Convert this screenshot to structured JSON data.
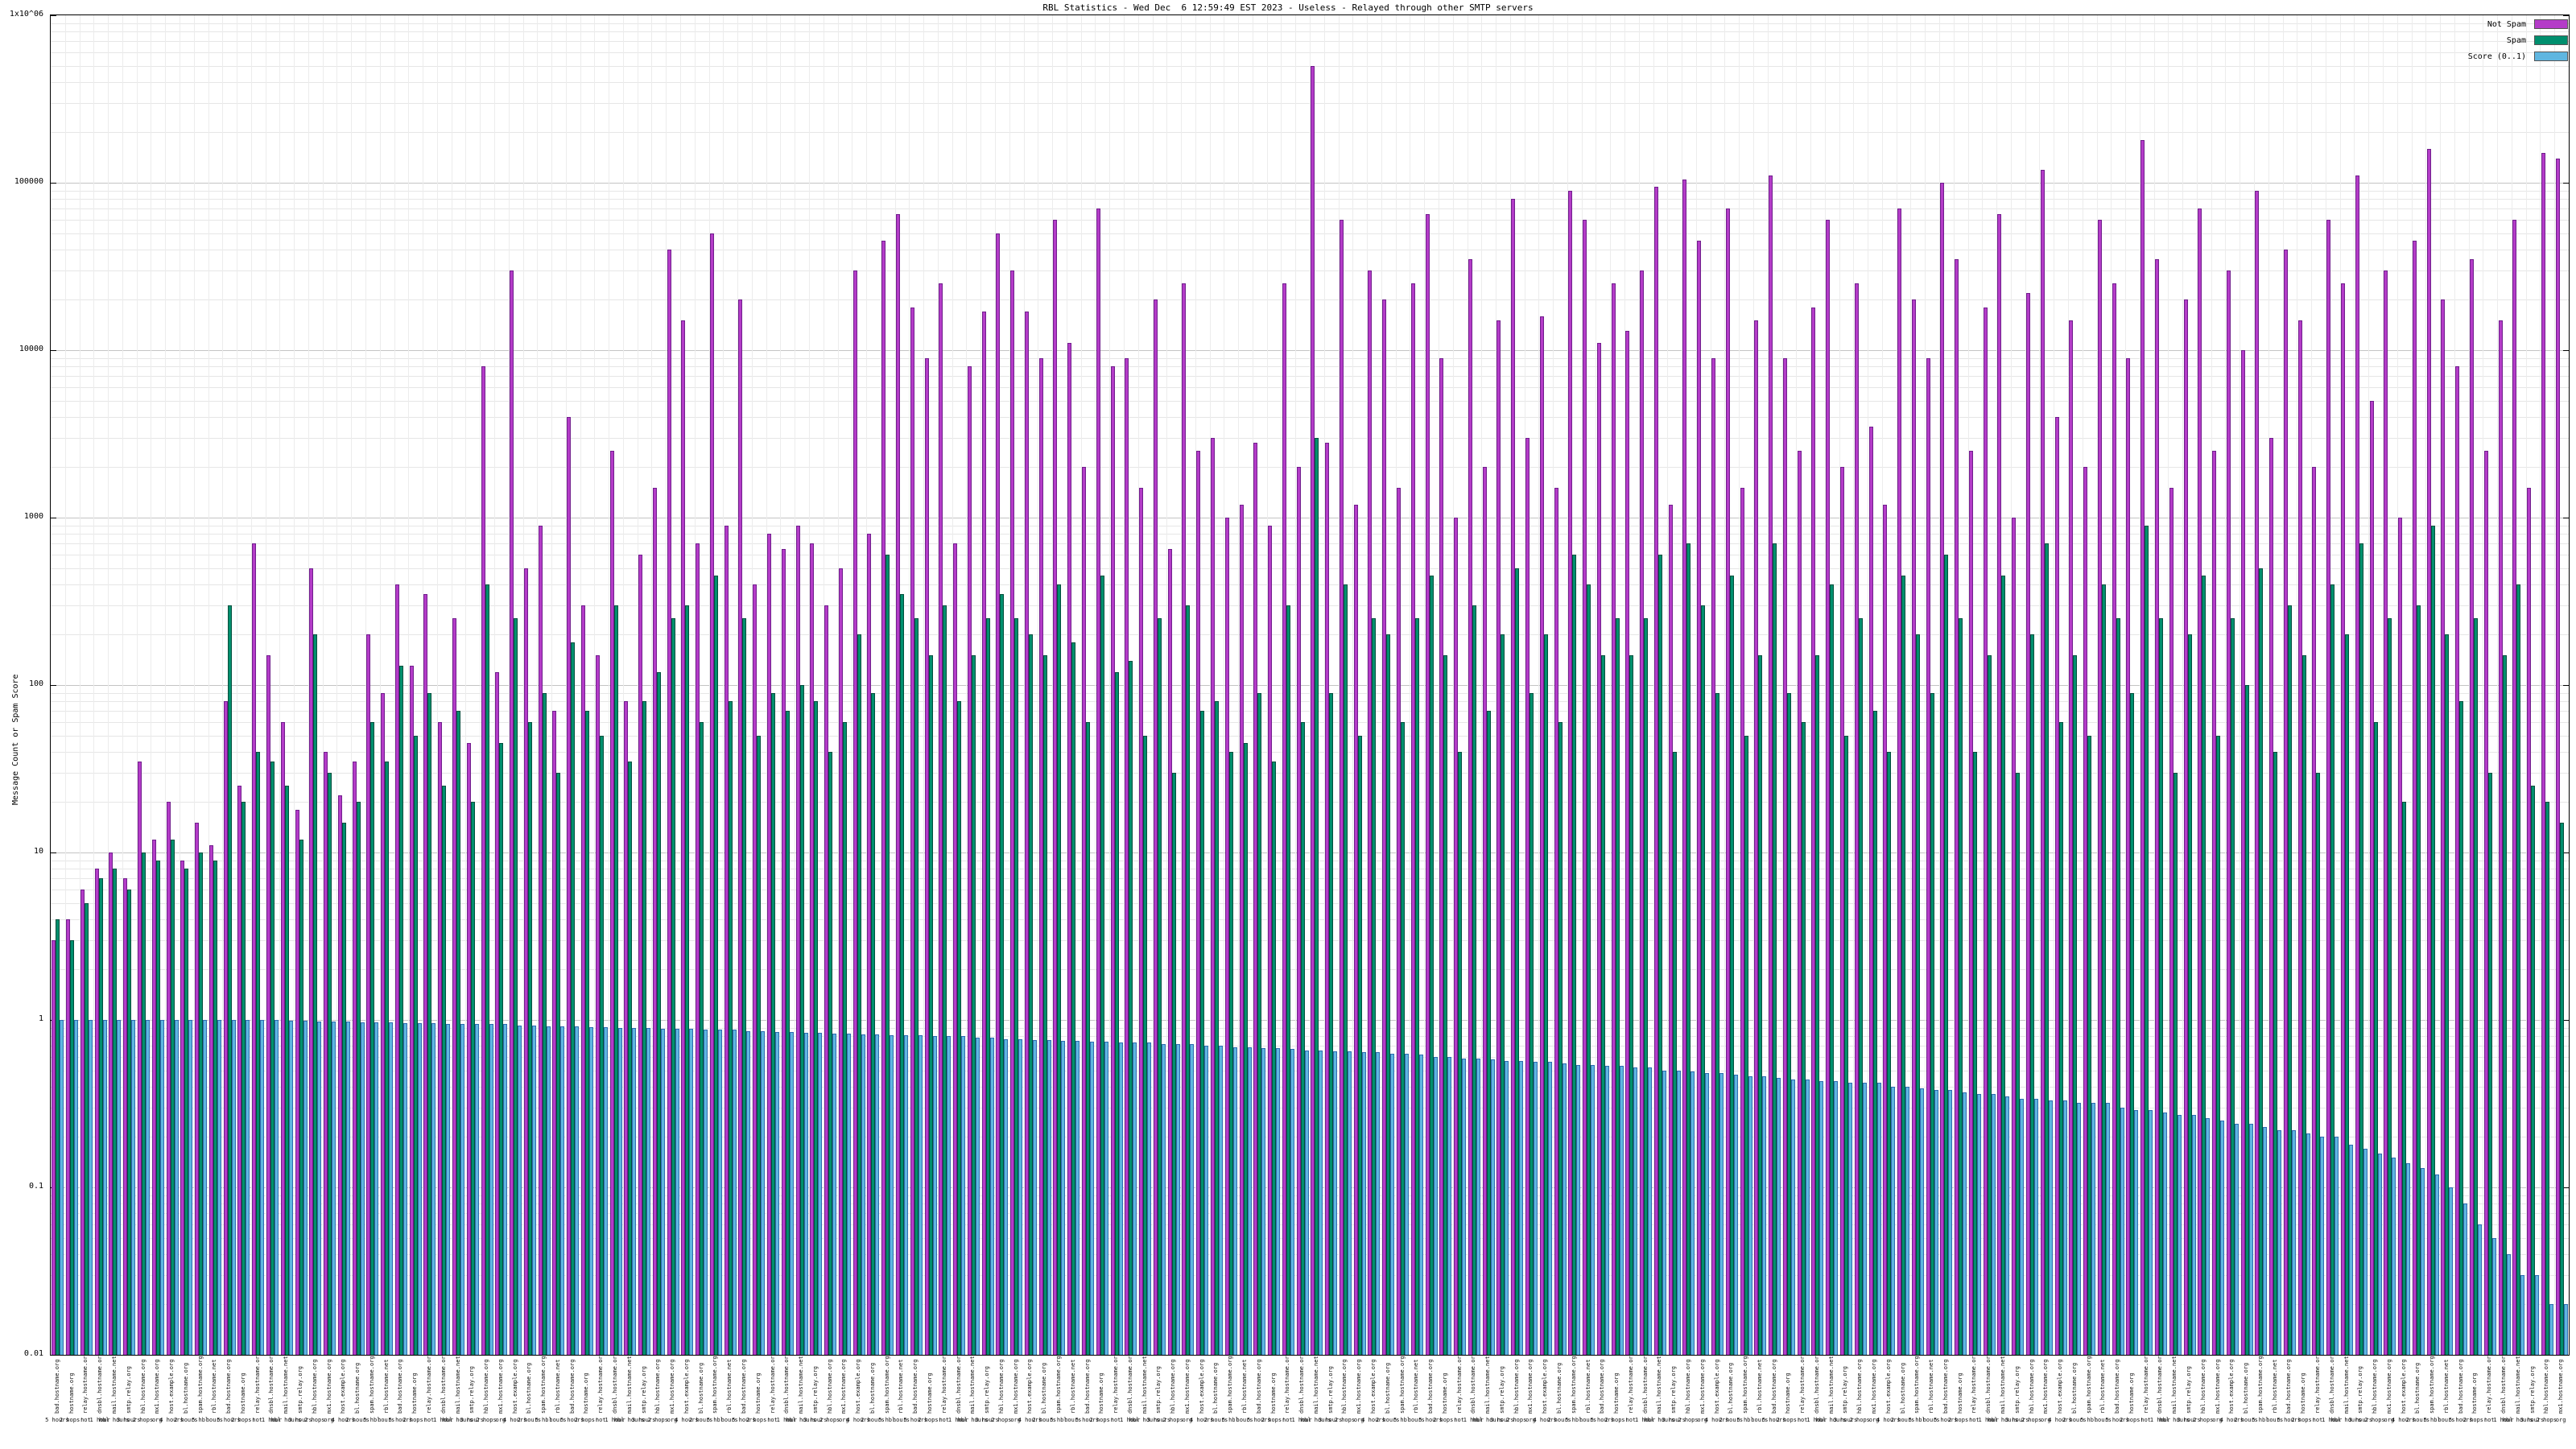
{
  "chart_data": {
    "type": "bar",
    "title": "RBL Statistics - Wed Dec  6 12:59:49 EST 2023 - Useless - Relayed through other SMTP servers",
    "ylabel": "Message Count or Spam Score",
    "xlabel": "",
    "yscale": "log",
    "ylim": [
      0.01,
      1000000
    ],
    "grid": true,
    "legend_position": "top-right",
    "yticks": [
      {
        "v": 1000000,
        "label": "1x10^06"
      },
      {
        "v": 100000,
        "label": "100000"
      },
      {
        "v": 10000,
        "label": "10000"
      },
      {
        "v": 1000,
        "label": "1000"
      },
      {
        "v": 100,
        "label": "100"
      },
      {
        "v": 10,
        "label": "10"
      },
      {
        "v": 1,
        "label": "1"
      },
      {
        "v": 0.1,
        "label": "0.1"
      },
      {
        "v": 0.01,
        "label": "0.01"
      }
    ],
    "legend": [
      {
        "name": "Not Spam",
        "color": "#b43cc8"
      },
      {
        "name": "Spam",
        "color": "#008f6e"
      },
      {
        "name": "Score (0..1)",
        "color": "#5fb6e0"
      }
    ],
    "bar_stroke": {
      "not_spam": "#701e8c",
      "spam": "#004f3c",
      "score": "#2e6bb0"
    },
    "grid_color_major": "#c4c4c4",
    "grid_color_minor": "#e6e6e6",
    "series_names": [
      "not_spam",
      "spam",
      "score"
    ],
    "xtick_label_pool": [
      "bad.hostname.org",
      "hostname.org",
      "relay.hostname.org",
      "dnsbl.hostname.org",
      "mail.hostname.net",
      "smtp.relay.org",
      "hbl.hostname.org",
      "mx1.hostname.org",
      "host.example.org",
      "bl.hostname.org",
      "spam.hostname.org",
      "rbl.hostname.net"
    ],
    "xtick_sub_pool": [
      "5 hours",
      "2 hops!",
      "not",
      "1 hour",
      "hbl hours",
      "3 hours",
      "2 hops",
      "org",
      "4 hours",
      "2 hours",
      "5 hbl",
      "hours"
    ],
    "not_spam": [
      3,
      4,
      6,
      8,
      10,
      7,
      35,
      12,
      20,
      9,
      15,
      11,
      80,
      25,
      700,
      150,
      60,
      18,
      500,
      40,
      22,
      35,
      200,
      90,
      400,
      130,
      350,
      60,
      250,
      45,
      8000,
      120,
      30000,
      500,
      900,
      70,
      4000,
      300,
      150,
      2500,
      80,
      600,
      1500,
      40000,
      15000,
      700,
      50000,
      900,
      20000,
      400,
      800,
      650,
      900,
      700,
      300,
      500,
      30000,
      800,
      45000,
      65000,
      18000,
      9000,
      25000,
      700,
      8000,
      17000,
      50000,
      30000,
      17000,
      9000,
      60000,
      11000,
      2000,
      70000,
      8000,
      9000,
      1500,
      20000,
      650,
      25000,
      2500,
      3000,
      1000,
      1200,
      2800,
      900,
      25000,
      2000,
      500000,
      2800,
      60000,
      1200,
      30000,
      20000,
      1500,
      25000,
      65000,
      9000,
      1000,
      35000,
      2000,
      15000,
      80000,
      3000,
      16000,
      1500,
      90000,
      60000,
      11000,
      25000,
      13000,
      30000,
      95000,
      1200,
      105000,
      45000,
      9000,
      70000,
      1500,
      15000,
      110000,
      9000,
      2500,
      18000,
      60000,
      2000,
      25000,
      3500,
      1200,
      70000,
      20000,
      9000,
      100000,
      35000,
      2500,
      18000,
      65000,
      1000,
      22000,
      120000,
      4000,
      15000,
      2000,
      60000,
      25000,
      9000,
      180000,
      35000,
      1500,
      20000,
      70000,
      2500,
      30000,
      10000,
      90000,
      3000,
      40000,
      15000,
      2000,
      60000,
      25000,
      110000,
      5000,
      30000,
      1000,
      45000,
      160000,
      20000,
      8000,
      35000,
      2500,
      15000,
      60000,
      1500,
      150000,
      140000
    ],
    "spam": [
      4,
      3,
      5,
      7,
      8,
      6,
      10,
      9,
      12,
      8,
      10,
      9,
      300,
      20,
      40,
      35,
      25,
      12,
      200,
      30,
      15,
      20,
      60,
      35,
      130,
      50,
      90,
      25,
      70,
      20,
      400,
      45,
      250,
      60,
      90,
      30,
      180,
      70,
      50,
      300,
      35,
      80,
      120,
      250,
      300,
      60,
      450,
      80,
      250,
      50,
      90,
      70,
      100,
      80,
      40,
      60,
      200,
      90,
      600,
      350,
      250,
      150,
      300,
      80,
      150,
      250,
      350,
      250,
      200,
      150,
      400,
      180,
      60,
      450,
      120,
      140,
      50,
      250,
      30,
      300,
      70,
      80,
      40,
      45,
      90,
      35,
      300,
      60,
      3000,
      90,
      400,
      50,
      250,
      200,
      60,
      250,
      450,
      150,
      40,
      300,
      70,
      200,
      500,
      90,
      200,
      60,
      600,
      400,
      150,
      250,
      150,
      250,
      600,
      40,
      700,
      300,
      90,
      450,
      50,
      150,
      700,
      90,
      60,
      150,
      400,
      50,
      250,
      70,
      40,
      450,
      200,
      90,
      600,
      250,
      40,
      150,
      450,
      30,
      200,
      700,
      60,
      150,
      50,
      400,
      250,
      90,
      900,
      250,
      30,
      200,
      450,
      50,
      250,
      100,
      500,
      40,
      300,
      150,
      30,
      400,
      200,
      700,
      60,
      250,
      20,
      300,
      900,
      200,
      80,
      250,
      30,
      150,
      400,
      25,
      20,
      15
    ],
    "score": [
      1,
      1,
      1,
      1,
      1,
      1,
      1,
      1,
      1,
      1,
      1,
      1,
      1,
      1,
      1,
      1,
      0.99,
      0.99,
      0.98,
      0.98,
      0.98,
      0.97,
      0.97,
      0.97,
      0.96,
      0.96,
      0.96,
      0.95,
      0.95,
      0.95,
      0.95,
      0.95,
      0.93,
      0.93,
      0.92,
      0.92,
      0.92,
      0.91,
      0.91,
      0.9,
      0.9,
      0.9,
      0.89,
      0.89,
      0.89,
      0.88,
      0.88,
      0.88,
      0.86,
      0.86,
      0.85,
      0.85,
      0.84,
      0.84,
      0.83,
      0.83,
      0.82,
      0.82,
      0.81,
      0.81,
      0.81,
      0.8,
      0.8,
      0.8,
      0.78,
      0.78,
      0.77,
      0.77,
      0.76,
      0.76,
      0.75,
      0.75,
      0.74,
      0.74,
      0.73,
      0.73,
      0.73,
      0.72,
      0.72,
      0.72,
      0.7,
      0.7,
      0.69,
      0.69,
      0.68,
      0.68,
      0.67,
      0.66,
      0.66,
      0.65,
      0.65,
      0.64,
      0.64,
      0.63,
      0.63,
      0.62,
      0.6,
      0.6,
      0.59,
      0.59,
      0.58,
      0.57,
      0.57,
      0.56,
      0.56,
      0.55,
      0.54,
      0.54,
      0.53,
      0.53,
      0.52,
      0.52,
      0.5,
      0.5,
      0.49,
      0.48,
      0.48,
      0.47,
      0.46,
      0.46,
      0.45,
      0.44,
      0.44,
      0.43,
      0.43,
      0.42,
      0.42,
      0.42,
      0.4,
      0.4,
      0.39,
      0.38,
      0.38,
      0.37,
      0.36,
      0.36,
      0.35,
      0.34,
      0.34,
      0.33,
      0.33,
      0.32,
      0.32,
      0.32,
      0.3,
      0.29,
      0.29,
      0.28,
      0.27,
      0.27,
      0.26,
      0.25,
      0.24,
      0.24,
      0.23,
      0.22,
      0.22,
      0.21,
      0.2,
      0.2,
      0.18,
      0.17,
      0.16,
      0.15,
      0.14,
      0.13,
      0.12,
      0.1,
      0.08,
      0.06,
      0.05,
      0.04,
      0.03,
      0.03,
      0.02,
      0.02
    ]
  }
}
